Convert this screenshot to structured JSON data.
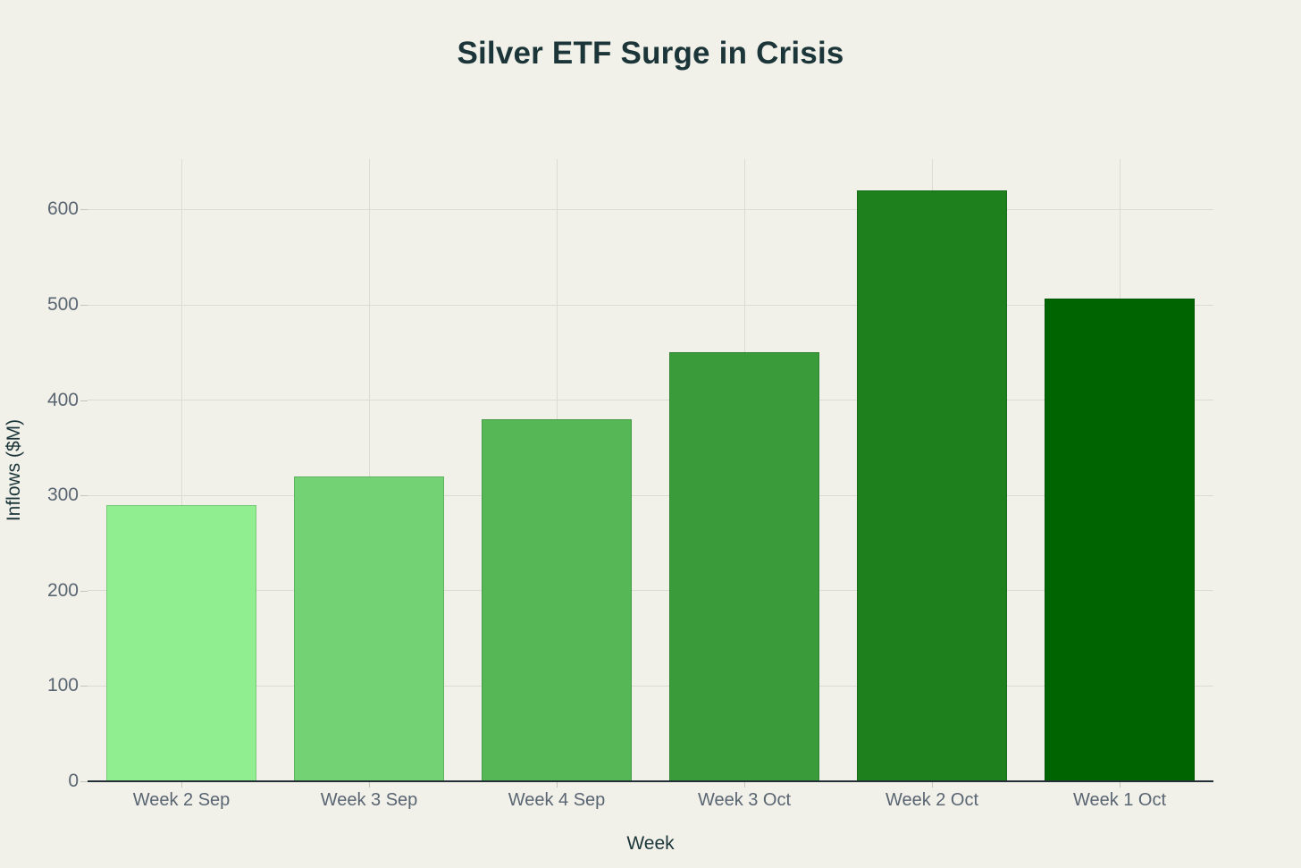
{
  "page": {
    "background": "#F1F1EA"
  },
  "chart_data": {
    "type": "bar",
    "title": "Silver ETF Surge in Crisis",
    "xlabel": "Week",
    "ylabel": "Inflows ($M)",
    "categories": [
      "Week 2 Sep",
      "Week 3 Sep",
      "Week 4 Sep",
      "Week 3 Oct",
      "Week 2 Oct",
      "Week 1 Oct"
    ],
    "values": [
      290,
      320,
      380,
      450,
      620,
      507
    ],
    "bar_colors": [
      "#90EE90",
      "#73D273",
      "#56B756",
      "#3A9B3A",
      "#1D801D",
      "#006400"
    ],
    "yticks": [
      0,
      100,
      200,
      300,
      400,
      500,
      600
    ],
    "ylim": [
      0,
      653
    ],
    "grid": true,
    "legend_position": "none",
    "colors": {
      "background": "#F1F1EA",
      "grid": "#DBDBD2",
      "axis_line": "#222F36",
      "tick_label": "#5A6572",
      "title_text": "#1B3539"
    }
  }
}
